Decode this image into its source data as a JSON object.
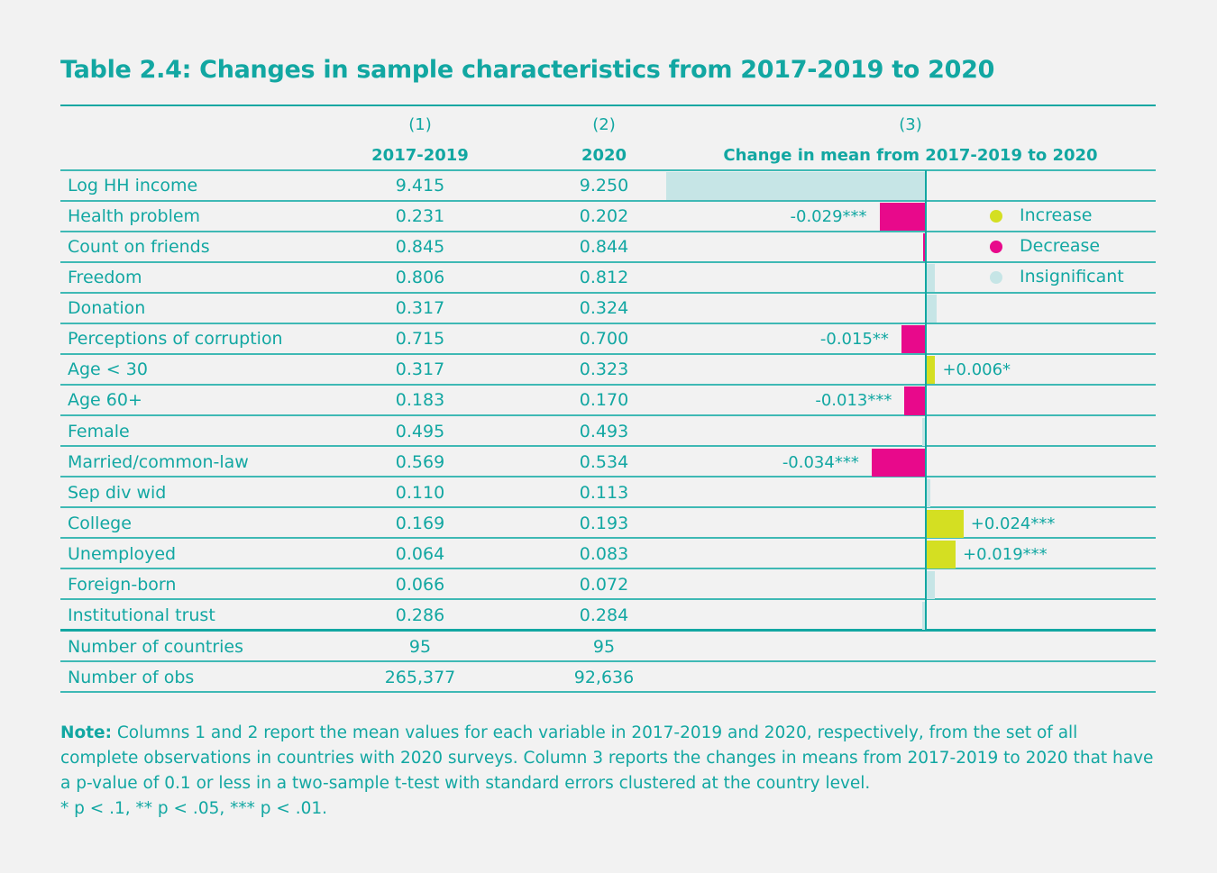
{
  "title": "Table 2.4: Changes in sample characteristics from 2017-2019 to 2020",
  "columns": [
    {
      "number": "(1)",
      "label": "2017-2019"
    },
    {
      "number": "(2)",
      "label": "2020"
    },
    {
      "number": "(3)",
      "label": "Change in mean from 2017-2019 to 2020"
    }
  ],
  "colors": {
    "increase": "#d4df22",
    "decrease": "#e8098b",
    "insignificant": "#c6e5e6",
    "accent": "#12a7a2"
  },
  "legend": [
    {
      "key": "increase",
      "label": "Increase"
    },
    {
      "key": "decrease",
      "label": "Decrease"
    },
    {
      "key": "insignificant",
      "label": "Insignificant"
    }
  ],
  "chart_data": {
    "type": "bar",
    "orientation": "horizontal",
    "title": "Change in mean from 2017-2019 to 2020",
    "legend_placement": "top-right",
    "categories": [
      "Log HH income",
      "Health problem",
      "Count on friends",
      "Freedom",
      "Donation",
      "Perceptions of corruption",
      "Age < 30",
      "Age 60+",
      "Female",
      "Married/common-law",
      "Sep div wid",
      "College",
      "Unemployed",
      "Foreign-born",
      "Institutional trust"
    ],
    "values": [
      -0.165,
      -0.029,
      -0.001,
      0.006,
      0.007,
      -0.015,
      0.006,
      -0.013,
      -0.002,
      -0.034,
      0.003,
      0.024,
      0.019,
      0.006,
      -0.002
    ],
    "status": [
      "insignificant",
      "decrease",
      "decrease",
      "insignificant",
      "insignificant",
      "decrease",
      "increase",
      "decrease",
      "insignificant",
      "decrease",
      "insignificant",
      "increase",
      "increase",
      "insignificant",
      "insignificant"
    ],
    "labels": [
      "",
      "-0.029***",
      "",
      "",
      "",
      "-0.015**",
      "+0.006*",
      "-0.013***",
      "",
      "-0.034***",
      "",
      "+0.024***",
      "+0.019***",
      "",
      ""
    ]
  },
  "rows": [
    {
      "label": "Log HH income",
      "c1": "9.415",
      "c2": "9.250"
    },
    {
      "label": "Health problem",
      "c1": "0.231",
      "c2": "0.202"
    },
    {
      "label": "Count on friends",
      "c1": "0.845",
      "c2": "0.844"
    },
    {
      "label": "Freedom",
      "c1": "0.806",
      "c2": "0.812"
    },
    {
      "label": "Donation",
      "c1": "0.317",
      "c2": "0.324"
    },
    {
      "label": "Perceptions of corruption",
      "c1": "0.715",
      "c2": "0.700"
    },
    {
      "label": "Age < 30",
      "c1": "0.317",
      "c2": "0.323"
    },
    {
      "label": "Age 60+",
      "c1": "0.183",
      "c2": "0.170"
    },
    {
      "label": "Female",
      "c1": "0.495",
      "c2": "0.493"
    },
    {
      "label": "Married/common-law",
      "c1": "0.569",
      "c2": "0.534"
    },
    {
      "label": "Sep div wid",
      "c1": "0.110",
      "c2": "0.113"
    },
    {
      "label": "College",
      "c1": "0.169",
      "c2": "0.193"
    },
    {
      "label": "Unemployed",
      "c1": "0.064",
      "c2": "0.083"
    },
    {
      "label": "Foreign-born",
      "c1": "0.066",
      "c2": "0.072"
    },
    {
      "label": "Institutional trust",
      "c1": "0.286",
      "c2": "0.284"
    }
  ],
  "summary_rows": [
    {
      "label": "Number of countries",
      "c1": "95",
      "c2": "95"
    },
    {
      "label": "Number of obs",
      "c1": "265,377",
      "c2": "92,636"
    }
  ],
  "note": {
    "label": "Note:",
    "text": "Columns 1 and 2 report the mean values for each variable in 2017-2019 and 2020, respectively, from the set of all complete observations in countries with 2020 surveys. Column 3 reports the changes in means from 2017-2019 to 2020 that have a p-value of 0.1 or less in a two-sample t-test with standard errors clustered at the country level.",
    "significance": "* p < .1, ** p < .05, *** p < .01."
  }
}
